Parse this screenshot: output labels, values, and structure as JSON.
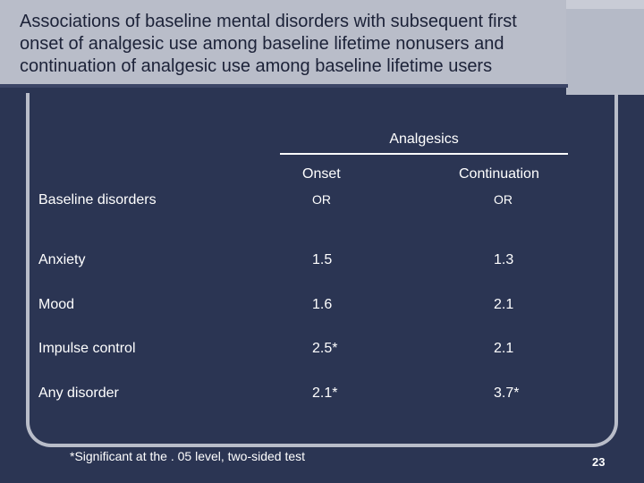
{
  "slide": {
    "title": "Associations of baseline mental disorders with subsequent first onset of analgesic use among baseline lifetime nonusers and continuation of analgesic use among baseline lifetime users",
    "footnote": "*Significant at the . 05 level, two-sided test",
    "page_number": "23"
  },
  "table": {
    "group_header": "Analgesics",
    "col_onset": "Onset",
    "col_continuation": "Continuation",
    "row_header": "Baseline disorders",
    "sub_onset": "OR",
    "sub_continuation": "OR",
    "rows": [
      {
        "label": "Anxiety",
        "onset": "1.5",
        "continuation": "1.3"
      },
      {
        "label": "Mood",
        "onset": "1.6",
        "continuation": "2.1"
      },
      {
        "label": "Impulse control",
        "onset": "2.5*",
        "continuation": "2.1"
      },
      {
        "label": "Any disorder",
        "onset": "2.1*",
        "continuation": "3.7*"
      }
    ]
  }
}
